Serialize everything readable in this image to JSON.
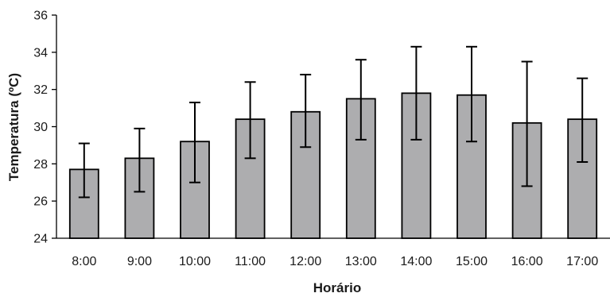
{
  "chart_data": {
    "type": "bar",
    "title": "",
    "xlabel": "Horário",
    "ylabel": "Temperatura (ºC)",
    "categories": [
      "8:00",
      "9:00",
      "10:00",
      "11:00",
      "12:00",
      "13:00",
      "14:00",
      "15:00",
      "16:00",
      "17:00"
    ],
    "values": [
      27.7,
      28.3,
      29.2,
      30.4,
      30.8,
      31.5,
      31.8,
      31.7,
      30.2,
      30.4
    ],
    "error_low": [
      26.2,
      26.5,
      27.0,
      28.3,
      28.9,
      29.3,
      29.3,
      29.2,
      26.8,
      28.1
    ],
    "error_high": [
      29.1,
      29.9,
      31.3,
      32.4,
      32.8,
      33.6,
      34.3,
      34.3,
      33.5,
      32.6
    ],
    "ylim": [
      24,
      36
    ],
    "yticks": [
      24,
      26,
      28,
      30,
      32,
      34,
      36
    ],
    "grid": false,
    "bar_color": "#adadaf",
    "bar_edge_color": "#000000"
  }
}
